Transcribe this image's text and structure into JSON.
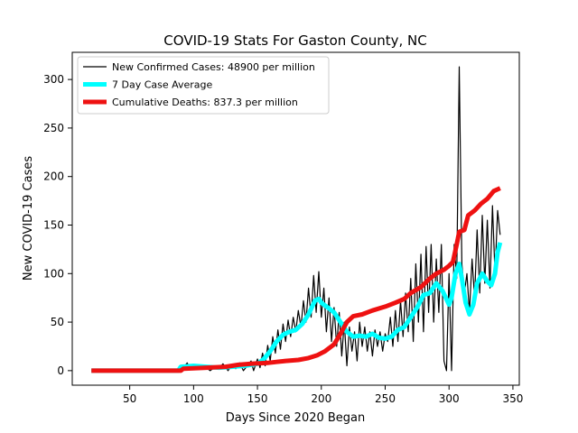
{
  "chart_data": {
    "type": "line",
    "title": "COVID-19 Stats For Gaston County, NC",
    "xlabel": "Days Since 2020 Began",
    "ylabel": "New COVID-19 Cases",
    "xlim": [
      5,
      355
    ],
    "ylim": [
      -15,
      328
    ],
    "xticks": [
      50,
      100,
      150,
      200,
      250,
      300,
      350
    ],
    "yticks": [
      0,
      50,
      100,
      150,
      200,
      250,
      300
    ],
    "grid": false,
    "legend_position": "top-left",
    "series": [
      {
        "name": "New Confirmed Cases: 48900 per million",
        "color": "#000000",
        "values": [
          [
            20,
            0
          ],
          [
            60,
            0
          ],
          [
            88,
            0
          ],
          [
            92,
            3
          ],
          [
            95,
            8
          ],
          [
            97,
            2
          ],
          [
            100,
            6
          ],
          [
            103,
            1
          ],
          [
            106,
            5
          ],
          [
            110,
            3
          ],
          [
            113,
            0
          ],
          [
            117,
            4
          ],
          [
            120,
            2
          ],
          [
            123,
            7
          ],
          [
            127,
            0
          ],
          [
            130,
            6
          ],
          [
            133,
            2
          ],
          [
            136,
            8
          ],
          [
            139,
            0
          ],
          [
            142,
            5
          ],
          [
            145,
            10
          ],
          [
            147,
            0
          ],
          [
            150,
            12
          ],
          [
            152,
            3
          ],
          [
            154,
            18
          ],
          [
            156,
            5
          ],
          [
            158,
            26
          ],
          [
            160,
            10
          ],
          [
            162,
            35
          ],
          [
            164,
            18
          ],
          [
            166,
            42
          ],
          [
            168,
            22
          ],
          [
            170,
            48
          ],
          [
            172,
            30
          ],
          [
            174,
            52
          ],
          [
            176,
            35
          ],
          [
            178,
            55
          ],
          [
            180,
            40
          ],
          [
            182,
            62
          ],
          [
            184,
            45
          ],
          [
            186,
            72
          ],
          [
            188,
            50
          ],
          [
            190,
            85
          ],
          [
            192,
            55
          ],
          [
            194,
            98
          ],
          [
            196,
            60
          ],
          [
            198,
            102
          ],
          [
            200,
            55
          ],
          [
            202,
            85
          ],
          [
            204,
            40
          ],
          [
            206,
            75
          ],
          [
            208,
            30
          ],
          [
            210,
            65
          ],
          [
            212,
            25
          ],
          [
            214,
            60
          ],
          [
            216,
            15
          ],
          [
            218,
            50
          ],
          [
            220,
            5
          ],
          [
            222,
            45
          ],
          [
            224,
            20
          ],
          [
            226,
            40
          ],
          [
            228,
            10
          ],
          [
            230,
            50
          ],
          [
            232,
            25
          ],
          [
            234,
            45
          ],
          [
            236,
            20
          ],
          [
            238,
            40
          ],
          [
            240,
            15
          ],
          [
            242,
            42
          ],
          [
            244,
            25
          ],
          [
            246,
            40
          ],
          [
            248,
            20
          ],
          [
            250,
            38
          ],
          [
            252,
            30
          ],
          [
            254,
            55
          ],
          [
            256,
            25
          ],
          [
            258,
            62
          ],
          [
            260,
            30
          ],
          [
            262,
            72
          ],
          [
            264,
            35
          ],
          [
            266,
            80
          ],
          [
            268,
            40
          ],
          [
            270,
            95
          ],
          [
            272,
            30
          ],
          [
            274,
            110
          ],
          [
            276,
            50
          ],
          [
            278,
            120
          ],
          [
            280,
            40
          ],
          [
            282,
            128
          ],
          [
            284,
            60
          ],
          [
            286,
            130
          ],
          [
            288,
            50
          ],
          [
            290,
            115
          ],
          [
            292,
            60
          ],
          [
            294,
            130
          ],
          [
            296,
            10
          ],
          [
            298,
            0
          ],
          [
            300,
            100
          ],
          [
            302,
            0
          ],
          [
            304,
            130
          ],
          [
            306,
            95
          ],
          [
            308,
            313
          ],
          [
            310,
            110
          ],
          [
            312,
            80
          ],
          [
            314,
            100
          ],
          [
            316,
            60
          ],
          [
            318,
            115
          ],
          [
            320,
            75
          ],
          [
            322,
            145
          ],
          [
            324,
            80
          ],
          [
            326,
            160
          ],
          [
            328,
            90
          ],
          [
            330,
            155
          ],
          [
            332,
            85
          ],
          [
            334,
            170
          ],
          [
            336,
            100
          ],
          [
            338,
            165
          ],
          [
            340,
            140
          ]
        ]
      },
      {
        "name": "7 Day Case Average",
        "color": "#00ffff",
        "values": [
          [
            20,
            0
          ],
          [
            88,
            0
          ],
          [
            90,
            4
          ],
          [
            100,
            5
          ],
          [
            110,
            4
          ],
          [
            120,
            3
          ],
          [
            130,
            4
          ],
          [
            140,
            5
          ],
          [
            150,
            7
          ],
          [
            155,
            12
          ],
          [
            160,
            20
          ],
          [
            165,
            30
          ],
          [
            170,
            37
          ],
          [
            175,
            40
          ],
          [
            180,
            42
          ],
          [
            185,
            48
          ],
          [
            190,
            58
          ],
          [
            195,
            72
          ],
          [
            198,
            74
          ],
          [
            200,
            70
          ],
          [
            205,
            65
          ],
          [
            210,
            60
          ],
          [
            215,
            50
          ],
          [
            220,
            40
          ],
          [
            225,
            35
          ],
          [
            230,
            36
          ],
          [
            235,
            35
          ],
          [
            240,
            38
          ],
          [
            245,
            34
          ],
          [
            250,
            33
          ],
          [
            255,
            35
          ],
          [
            260,
            42
          ],
          [
            265,
            45
          ],
          [
            270,
            55
          ],
          [
            275,
            65
          ],
          [
            280,
            78
          ],
          [
            285,
            80
          ],
          [
            290,
            90
          ],
          [
            295,
            82
          ],
          [
            300,
            68
          ],
          [
            302,
            75
          ],
          [
            305,
            100
          ],
          [
            308,
            110
          ],
          [
            310,
            95
          ],
          [
            313,
            70
          ],
          [
            316,
            58
          ],
          [
            319,
            68
          ],
          [
            322,
            90
          ],
          [
            326,
            100
          ],
          [
            330,
            92
          ],
          [
            333,
            88
          ],
          [
            336,
            100
          ],
          [
            338,
            122
          ],
          [
            340,
            132
          ]
        ]
      },
      {
        "name": "Cumulative Deaths: 837.3 per million",
        "color": "#ee1111",
        "values": [
          [
            20,
            0
          ],
          [
            90,
            0
          ],
          [
            92,
            2
          ],
          [
            110,
            3
          ],
          [
            125,
            4
          ],
          [
            135,
            6
          ],
          [
            145,
            7
          ],
          [
            158,
            8
          ],
          [
            165,
            9
          ],
          [
            172,
            10
          ],
          [
            182,
            11
          ],
          [
            190,
            13
          ],
          [
            197,
            16
          ],
          [
            203,
            20
          ],
          [
            210,
            27
          ],
          [
            215,
            38
          ],
          [
            220,
            50
          ],
          [
            225,
            56
          ],
          [
            232,
            58
          ],
          [
            240,
            62
          ],
          [
            250,
            66
          ],
          [
            258,
            70
          ],
          [
            265,
            74
          ],
          [
            270,
            80
          ],
          [
            278,
            86
          ],
          [
            285,
            95
          ],
          [
            290,
            100
          ],
          [
            296,
            104
          ],
          [
            300,
            108
          ],
          [
            303,
            112
          ],
          [
            306,
            130
          ],
          [
            308,
            143
          ],
          [
            312,
            145
          ],
          [
            315,
            160
          ],
          [
            320,
            165
          ],
          [
            325,
            172
          ],
          [
            330,
            177
          ],
          [
            335,
            185
          ],
          [
            340,
            188
          ]
        ]
      }
    ]
  }
}
